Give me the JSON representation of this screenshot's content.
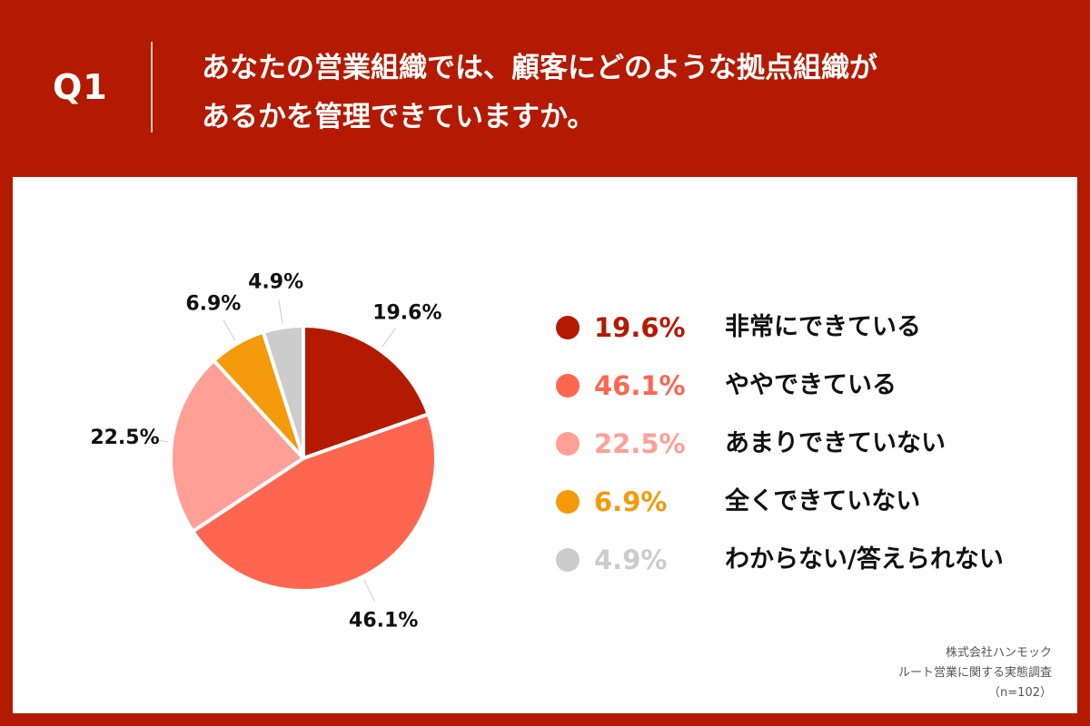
{
  "header": {
    "q_label": "Q1",
    "question_line1": "あなたの営業組織では、顧客にどのような拠点組織が",
    "question_line2": "あるかを管理できていますか。"
  },
  "colors": {
    "frame": "#b31a00",
    "slice1": "#b31a00",
    "slice2": "#ff6650",
    "slice3": "#ff9f96",
    "slice4": "#f59a0b",
    "slice5": "#cccccc"
  },
  "chart_data": {
    "type": "pie",
    "start": "12 o'clock",
    "direction": "clockwise",
    "slices": [
      {
        "label": "非常にできている",
        "value": 19.6,
        "display": "19.6%",
        "color": "#b31a00"
      },
      {
        "label": "ややできている",
        "value": 46.1,
        "display": "46.1%",
        "color": "#ff6650"
      },
      {
        "label": "あまりできていない",
        "value": 22.5,
        "display": "22.5%",
        "color": "#ff9f96"
      },
      {
        "label": "全くできていない",
        "value": 6.9,
        "display": "6.9%",
        "color": "#f59a0b"
      },
      {
        "label": "わからない/答えられない",
        "value": 4.9,
        "display": "4.9%",
        "color": "#cccccc"
      }
    ],
    "legend_placement": "right"
  },
  "source": {
    "line1": "株式会社ハンモック",
    "line2": "ルート営業に関する実態調査",
    "line3": "（n=102）"
  }
}
